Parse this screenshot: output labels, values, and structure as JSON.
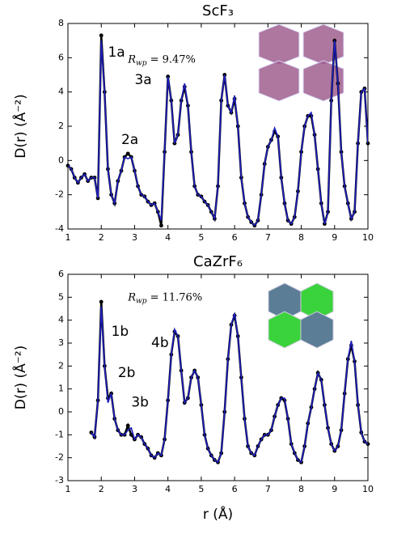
{
  "chart_data": [
    {
      "type": "line",
      "title": "ScF₃",
      "ylabel": "D(r) (Å⁻²)",
      "x": [
        1.0,
        1.1,
        1.2,
        1.3,
        1.4,
        1.5,
        1.6,
        1.7,
        1.8,
        1.9,
        2.0,
        2.1,
        2.2,
        2.3,
        2.4,
        2.5,
        2.6,
        2.7,
        2.8,
        2.9,
        3.0,
        3.1,
        3.2,
        3.3,
        3.4,
        3.5,
        3.6,
        3.7,
        3.8,
        3.9,
        4.0,
        4.1,
        4.2,
        4.3,
        4.4,
        4.5,
        4.6,
        4.7,
        4.8,
        4.9,
        5.0,
        5.1,
        5.2,
        5.3,
        5.4,
        5.5,
        5.6,
        5.7,
        5.8,
        5.9,
        6.0,
        6.1,
        6.2,
        6.3,
        6.4,
        6.5,
        6.6,
        6.7,
        6.8,
        6.9,
        7.0,
        7.1,
        7.2,
        7.3,
        7.4,
        7.5,
        7.6,
        7.7,
        7.8,
        7.9,
        8.0,
        8.1,
        8.2,
        8.3,
        8.4,
        8.5,
        8.6,
        8.7,
        8.8,
        8.9,
        9.0,
        9.1,
        9.2,
        9.3,
        9.4,
        9.5,
        9.6,
        9.7,
        9.8,
        9.9,
        10.0
      ],
      "series": [
        {
          "color": "#000000",
          "marker": true,
          "values": [
            -0.3,
            -0.5,
            -1.0,
            -1.3,
            -1.0,
            -0.8,
            -1.2,
            -1.0,
            -1.0,
            -2.2,
            7.3,
            4.0,
            -0.5,
            -2.0,
            -2.5,
            -1.2,
            -0.6,
            0.2,
            0.4,
            0.2,
            -0.6,
            -1.5,
            -2.0,
            -2.1,
            -2.4,
            -2.6,
            -2.5,
            -3.0,
            -3.8,
            0.5,
            4.9,
            3.5,
            1.0,
            1.5,
            3.5,
            4.3,
            3.2,
            0.5,
            -1.5,
            -2.0,
            -2.1,
            -2.4,
            -2.6,
            -3.0,
            -3.4,
            -1.5,
            3.5,
            5.0,
            3.2,
            2.8,
            3.6,
            2.0,
            -1.0,
            -2.5,
            -3.3,
            -3.6,
            -3.8,
            -3.5,
            -2.0,
            -0.2,
            0.8,
            1.2,
            1.7,
            1.4,
            -1.0,
            -2.5,
            -3.5,
            -3.7,
            -3.3,
            -1.8,
            0.5,
            2.0,
            2.6,
            2.6,
            1.5,
            -0.5,
            -2.5,
            -3.7,
            -3.0,
            3.5,
            7.0,
            4.5,
            0.5,
            -1.5,
            -2.5,
            -3.4,
            -3.0,
            1.0,
            4.0,
            4.2,
            1.0
          ]
        },
        {
          "color": "#1f1fbf",
          "marker": false,
          "values": [
            -0.3,
            -0.5,
            -1.0,
            -1.3,
            -1.0,
            -0.8,
            -1.2,
            -1.0,
            -1.0,
            -2.2,
            7.0,
            4.0,
            -0.5,
            -2.0,
            -2.5,
            -1.2,
            -0.6,
            0.2,
            0.1,
            0.2,
            -0.6,
            -1.5,
            -2.0,
            -2.1,
            -2.4,
            -2.6,
            -2.5,
            -3.0,
            -3.5,
            0.5,
            4.9,
            3.5,
            1.0,
            1.5,
            3.5,
            4.5,
            3.2,
            0.5,
            -1.5,
            -2.0,
            -2.1,
            -2.4,
            -2.6,
            -3.0,
            -3.4,
            -1.5,
            3.5,
            5.0,
            3.2,
            2.8,
            3.8,
            2.0,
            -1.0,
            -2.5,
            -3.3,
            -3.6,
            -3.8,
            -3.5,
            -2.0,
            -0.2,
            0.8,
            1.2,
            1.9,
            1.4,
            -1.0,
            -2.5,
            -3.5,
            -3.7,
            -3.3,
            -1.8,
            0.5,
            2.0,
            2.6,
            2.8,
            1.5,
            -0.5,
            -2.5,
            -3.7,
            -3.0,
            3.5,
            7.0,
            4.5,
            0.5,
            -1.5,
            -2.5,
            -3.4,
            -3.0,
            1.0,
            4.0,
            4.2,
            1.0
          ]
        }
      ],
      "xlim": [
        1,
        10
      ],
      "xticks": [
        1,
        2,
        3,
        4,
        5,
        6,
        7,
        8,
        9,
        10
      ],
      "ylim": [
        -4,
        8
      ],
      "yticks": [
        -4,
        -2,
        0,
        2,
        4,
        6,
        8
      ],
      "annotations": [
        {
          "text": "1a",
          "x": 2.2,
          "y": 6.3
        },
        {
          "text": "3a",
          "x": 3.0,
          "y": 4.7
        },
        {
          "text": "2a",
          "x": 2.6,
          "y": 1.2
        }
      ],
      "fit_label": {
        "parts": [
          "R",
          "wp",
          " = 9.47%"
        ],
        "x": 2.8,
        "y": 5.9
      }
    },
    {
      "type": "line",
      "title": "CaZrF₆",
      "ylabel": "D(r) (Å⁻²)",
      "xlabel": "r (Å)",
      "x": [
        1.7,
        1.8,
        1.9,
        2.0,
        2.1,
        2.2,
        2.3,
        2.4,
        2.5,
        2.6,
        2.7,
        2.8,
        2.9,
        3.0,
        3.1,
        3.2,
        3.3,
        3.4,
        3.5,
        3.6,
        3.7,
        3.8,
        3.9,
        4.0,
        4.1,
        4.2,
        4.3,
        4.4,
        4.5,
        4.6,
        4.7,
        4.8,
        4.9,
        5.0,
        5.1,
        5.2,
        5.3,
        5.4,
        5.5,
        5.6,
        5.7,
        5.8,
        5.9,
        6.0,
        6.1,
        6.2,
        6.3,
        6.4,
        6.5,
        6.6,
        6.7,
        6.8,
        6.9,
        7.0,
        7.1,
        7.2,
        7.3,
        7.4,
        7.5,
        7.6,
        7.7,
        7.8,
        7.9,
        8.0,
        8.1,
        8.2,
        8.3,
        8.4,
        8.5,
        8.6,
        8.7,
        8.8,
        8.9,
        9.0,
        9.1,
        9.2,
        9.3,
        9.4,
        9.5,
        9.6,
        9.7,
        9.8,
        9.9,
        10.0
      ],
      "series": [
        {
          "color": "#000000",
          "marker": true,
          "values": [
            -0.9,
            -1.1,
            0.5,
            4.8,
            2.0,
            0.6,
            0.8,
            -0.3,
            -0.8,
            -1.0,
            -1.0,
            -0.6,
            -1.0,
            -1.2,
            -1.0,
            -1.1,
            -1.4,
            -1.6,
            -1.9,
            -2.0,
            -1.8,
            -1.9,
            -1.2,
            0.5,
            2.5,
            3.5,
            3.3,
            1.8,
            0.4,
            0.6,
            1.5,
            1.8,
            1.5,
            0.3,
            -1.0,
            -1.6,
            -1.9,
            -2.1,
            -2.2,
            -1.8,
            0.0,
            2.3,
            3.8,
            4.2,
            3.3,
            1.5,
            -0.3,
            -1.5,
            -1.8,
            -1.9,
            -1.5,
            -1.2,
            -1.0,
            -1.0,
            -0.8,
            -0.2,
            0.3,
            0.6,
            0.5,
            -0.3,
            -1.4,
            -1.8,
            -2.1,
            -2.2,
            -1.5,
            -0.5,
            0.2,
            1.0,
            1.7,
            1.4,
            0.3,
            -0.7,
            -1.4,
            -1.7,
            -1.5,
            -0.8,
            0.8,
            2.3,
            2.9,
            2.2,
            0.3,
            -0.9,
            -1.3,
            -1.4
          ]
        },
        {
          "color": "#1f1fbf",
          "marker": false,
          "values": [
            -0.9,
            -1.1,
            0.5,
            4.6,
            2.0,
            0.4,
            0.8,
            -0.3,
            -0.8,
            -1.0,
            -1.0,
            -0.8,
            -0.7,
            -1.2,
            -1.0,
            -1.1,
            -1.4,
            -1.6,
            -1.9,
            -2.0,
            -1.8,
            -1.9,
            -1.2,
            0.5,
            2.5,
            3.6,
            3.3,
            1.8,
            0.4,
            0.6,
            1.5,
            1.8,
            1.5,
            0.3,
            -1.0,
            -1.6,
            -1.9,
            -2.1,
            -2.2,
            -1.8,
            0.0,
            2.3,
            3.8,
            4.3,
            3.3,
            1.5,
            -0.3,
            -1.5,
            -1.8,
            -1.9,
            -1.5,
            -1.2,
            -1.0,
            -1.0,
            -0.8,
            -0.2,
            0.3,
            0.6,
            0.6,
            -0.3,
            -1.4,
            -1.8,
            -2.1,
            -2.2,
            -1.5,
            -0.5,
            0.2,
            1.0,
            1.7,
            1.4,
            0.3,
            -0.7,
            -1.4,
            -1.7,
            -1.5,
            -0.8,
            0.8,
            2.3,
            3.1,
            2.2,
            0.3,
            -0.9,
            -1.3,
            -1.4
          ]
        }
      ],
      "xlim": [
        1,
        10
      ],
      "xticks": [
        1,
        2,
        3,
        4,
        5,
        6,
        7,
        8,
        9,
        10
      ],
      "ylim": [
        -3,
        6
      ],
      "yticks": [
        -3,
        -2,
        -1,
        0,
        1,
        2,
        3,
        4,
        5,
        6
      ],
      "annotations": [
        {
          "text": "1b",
          "x": 2.3,
          "y": 3.5
        },
        {
          "text": "2b",
          "x": 2.5,
          "y": 1.7
        },
        {
          "text": "3b",
          "x": 2.9,
          "y": 0.4
        },
        {
          "text": "4b",
          "x": 3.5,
          "y": 3.0
        }
      ],
      "fit_label": {
        "parts": [
          "R",
          "wp",
          " = 11.76%"
        ],
        "x": 2.8,
        "y": 5.0
      }
    }
  ]
}
